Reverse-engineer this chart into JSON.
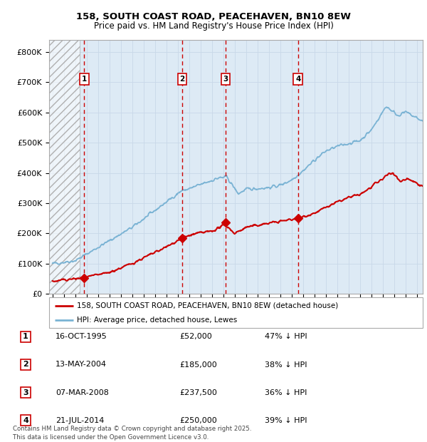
{
  "title_line1": "158, SOUTH COAST ROAD, PEACEHAVEN, BN10 8EW",
  "title_line2": "Price paid vs. HM Land Registry's House Price Index (HPI)",
  "ylabel_ticks": [
    "£0",
    "£100K",
    "£200K",
    "£300K",
    "£400K",
    "£500K",
    "£600K",
    "£700K",
    "£800K"
  ],
  "ytick_values": [
    0,
    100000,
    200000,
    300000,
    400000,
    500000,
    600000,
    700000,
    800000
  ],
  "ylim": [
    0,
    840000
  ],
  "xlim_start": 1992.7,
  "xlim_end": 2025.5,
  "hpi_color": "#7ab3d4",
  "price_color": "#cc0000",
  "marker_color": "#cc0000",
  "sale_dates": [
    1995.79,
    2004.37,
    2008.18,
    2014.55
  ],
  "sale_prices": [
    52000,
    185000,
    237500,
    250000
  ],
  "sale_labels": [
    "1",
    "2",
    "3",
    "4"
  ],
  "vline_color": "#cc0000",
  "box_color": "#cc0000",
  "hatched_region_end": 1995.4,
  "grid_color": "#c8d8e8",
  "bg_color": "#ddeaf5",
  "footer_text": "Contains HM Land Registry data © Crown copyright and database right 2025.\nThis data is licensed under the Open Government Licence v3.0.",
  "legend_entries": [
    "158, SOUTH COAST ROAD, PEACEHAVEN, BN10 8EW (detached house)",
    "HPI: Average price, detached house, Lewes"
  ],
  "table_data": [
    [
      "1",
      "16-OCT-1995",
      "£52,000",
      "47% ↓ HPI"
    ],
    [
      "2",
      "13-MAY-2004",
      "£185,000",
      "38% ↓ HPI"
    ],
    [
      "3",
      "07-MAR-2008",
      "£237,500",
      "36% ↓ HPI"
    ],
    [
      "4",
      "21-JUL-2014",
      "£250,000",
      "39% ↓ HPI"
    ]
  ]
}
